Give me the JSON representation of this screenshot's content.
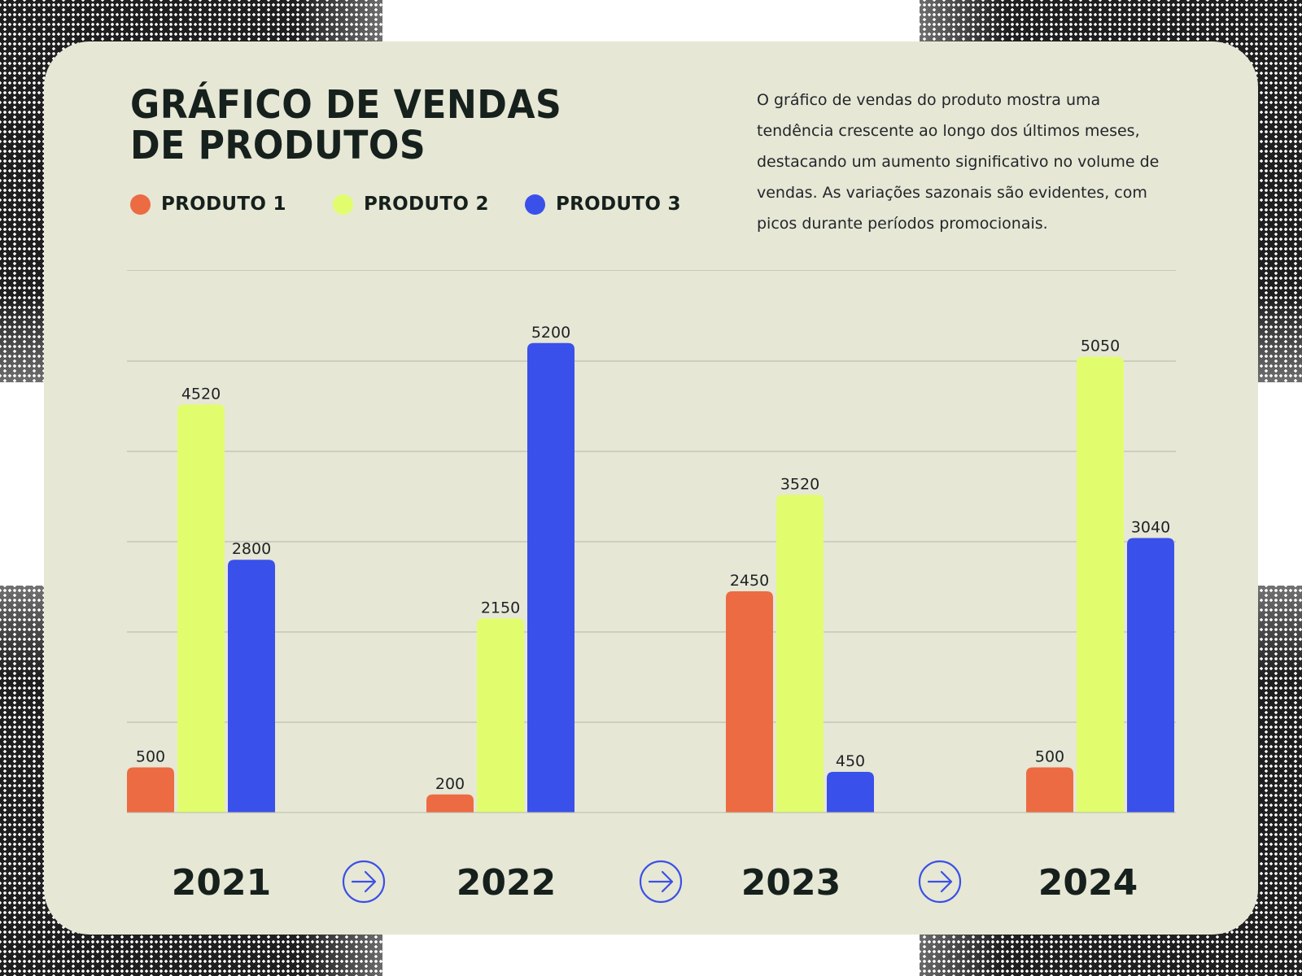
{
  "description": "O gráfico de vendas do produto mostra uma tendência crescente ao longo dos últimos meses, destacando um aumento significativo no volume de vendas. As variações sazonais são evidentes, com picos durante períodos promocionais.",
  "decoration": {
    "arrow_icon": "arrow-right-circle-icon",
    "arrow_color": "#3b50e6"
  },
  "chart_data": {
    "type": "bar",
    "title_lines": [
      "GRÁFICO DE VENDAS",
      "DE PRODUTOS"
    ],
    "categories": [
      "2021",
      "2022",
      "2023",
      "2024"
    ],
    "series": [
      {
        "name": "PRODUTO 1",
        "color": "#ec6b43",
        "values": [
          500,
          200,
          2450,
          500
        ]
      },
      {
        "name": "PRODUTO 2",
        "color": "#e1fd6e",
        "values": [
          4520,
          2150,
          3520,
          5050
        ]
      },
      {
        "name": "PRODUTO 3",
        "color": "#3a50ea",
        "values": [
          2800,
          5200,
          450,
          3040
        ]
      }
    ],
    "ylim": [
      0,
      6000
    ],
    "y_gridlines": [
      0,
      1000,
      2000,
      3000,
      4000,
      5000
    ],
    "grid": true,
    "legend": "top-left",
    "data_labels": true,
    "y_tick_labels": false
  }
}
